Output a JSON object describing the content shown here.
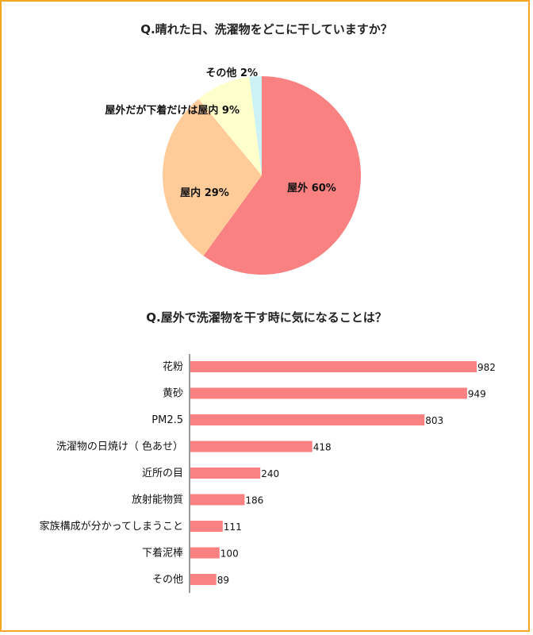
{
  "chart_data": [
    {
      "type": "pie",
      "title": "Q.晴れた日、洗濯物をどこに干していますか？",
      "slices": [
        {
          "label": "屋外",
          "value": 60,
          "display": "屋外 60%",
          "color": "#f98181"
        },
        {
          "label": "屋内",
          "value": 29,
          "display": "屋内 29%",
          "color": "#ffcc99"
        },
        {
          "label": "屋外だが下着だけは屋内",
          "value": 9,
          "display": "屋外だが下着だけは屋内 9%",
          "color": "#ffffcc"
        },
        {
          "label": "その他",
          "value": 2,
          "display": "その他 2%",
          "color": "#ccf2f5"
        }
      ]
    },
    {
      "type": "bar",
      "orientation": "horizontal",
      "title": "Q.屋外で洗濯物を干す時に気になることは？",
      "categories": [
        "花粉",
        "黄砂",
        "PM2.5",
        "洗濯物の日焼け（ 色あせ）",
        "近所の目",
        "放射能物質",
        "家族構成が分かってしまうこと",
        "下着泥棒",
        "その他"
      ],
      "values": [
        982,
        949,
        803,
        418,
        240,
        186,
        111,
        100,
        89
      ],
      "bar_color": "#f98181",
      "xlim": [
        0,
        1000
      ],
      "grid": false
    }
  ]
}
